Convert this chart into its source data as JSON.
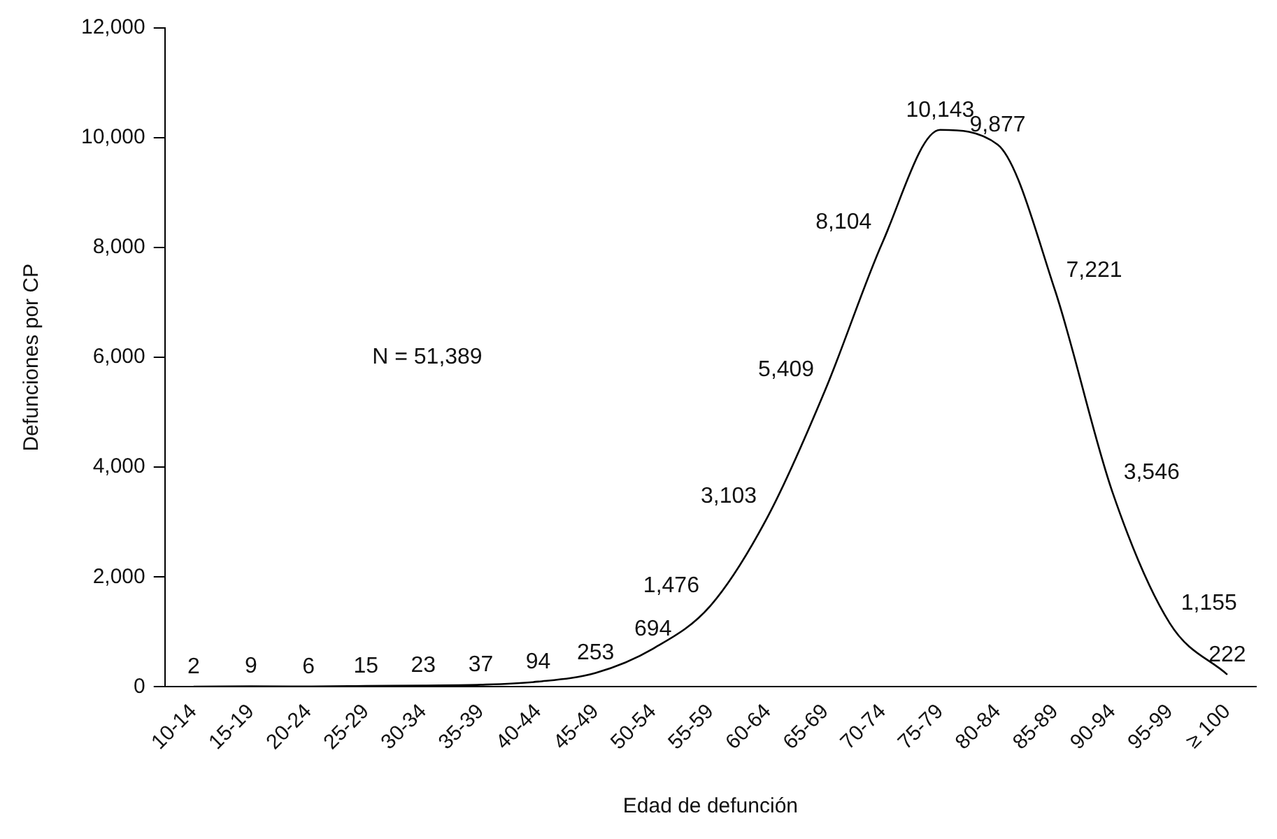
{
  "chart_data": {
    "type": "line",
    "xlabel": "Edad de defunción",
    "ylabel": "Defunciones por CP",
    "categories": [
      "10-14",
      "15-19",
      "20-24",
      "25-29",
      "30-34",
      "35-39",
      "40-44",
      "45-49",
      "50-54",
      "55-59",
      "60-64",
      "65-69",
      "70-74",
      "75-79",
      "80-84",
      "85-89",
      "90-94",
      "95-99",
      "≥ 100"
    ],
    "series": [
      {
        "color": "#000000",
        "values": [
          2,
          9,
          6,
          15,
          23,
          37,
          94,
          253,
          694,
          1476,
          3103,
          5409,
          8104,
          10143,
          9877,
          7221,
          3546,
          1155,
          222
        ],
        "value_labels": [
          "2",
          "9",
          "6",
          "15",
          "23",
          "37",
          "94",
          "253",
          "694",
          "1,476",
          "3,103",
          "5,409",
          "8,104",
          "10,143",
          "9,877",
          "7,221",
          "3,546",
          "1,155",
          "222"
        ]
      }
    ],
    "ylim": [
      0,
      12000
    ],
    "yticks": [
      {
        "value": 0,
        "label": "0"
      },
      {
        "value": 2000,
        "label": "2,000"
      },
      {
        "value": 4000,
        "label": "4,000"
      },
      {
        "value": 6000,
        "label": "6,000"
      },
      {
        "value": 8000,
        "label": "8,000"
      },
      {
        "value": 10000,
        "label": "10,000"
      },
      {
        "value": 12000,
        "label": "12,000"
      }
    ],
    "annotations": [
      "N = 51,389"
    ],
    "grid": false,
    "legend": false,
    "marker": "none",
    "line_style": "solid"
  }
}
